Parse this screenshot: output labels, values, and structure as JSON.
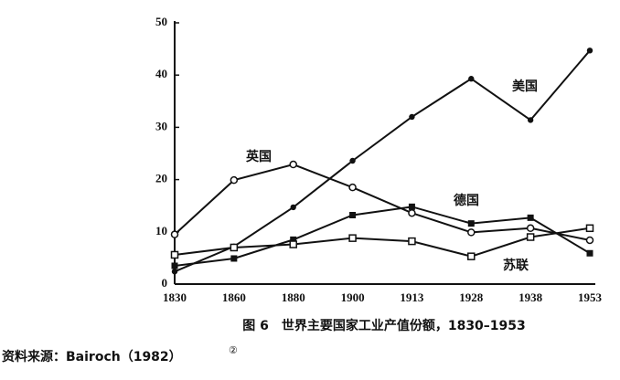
{
  "chart_data": {
    "type": "line",
    "caption": "图 6　世界主要国家工业产值份额，1830–1953",
    "source": "资料来源：Bairoch（1982）",
    "source_note": "②",
    "categories": [
      "1830",
      "1860",
      "1880",
      "1900",
      "1913",
      "1928",
      "1938",
      "1953"
    ],
    "ylim": [
      0,
      50
    ],
    "yticks": [
      0,
      10,
      20,
      30,
      40,
      50
    ],
    "series": [
      {
        "name": "美国",
        "color": "#111111",
        "marker": "dot",
        "values": [
          2.4,
          7.2,
          14.7,
          23.6,
          32,
          39.3,
          31.4,
          44.7
        ]
      },
      {
        "name": "英国",
        "color": "#111111",
        "marker": "circle",
        "values": [
          9.5,
          19.9,
          22.9,
          18.5,
          13.6,
          9.9,
          10.7,
          8.4
        ]
      },
      {
        "name": "德国",
        "color": "#111111",
        "marker": "square",
        "values": [
          3.5,
          4.9,
          8.5,
          13.2,
          14.8,
          11.6,
          12.7,
          5.9
        ]
      },
      {
        "name": "苏联",
        "color": "#111111",
        "marker": "open-square",
        "values": [
          5.6,
          7.0,
          7.6,
          8.8,
          8.2,
          5.3,
          9.0,
          10.7
        ]
      }
    ]
  }
}
